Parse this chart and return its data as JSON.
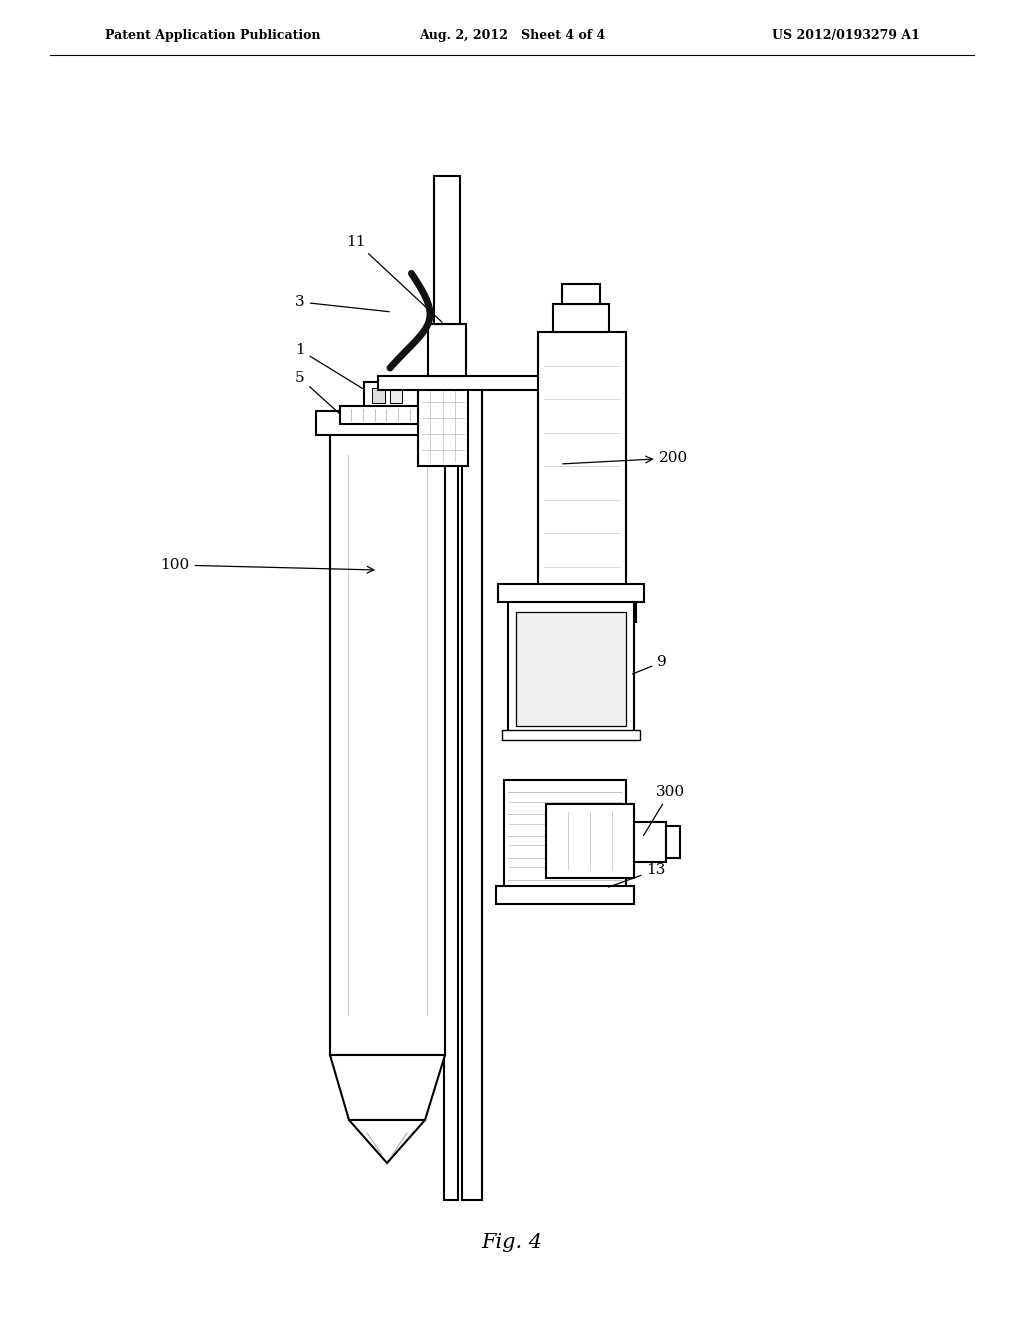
{
  "bg_color": "#ffffff",
  "line_color": "#000000",
  "title_left": "Patent Application Publication",
  "title_mid": "Aug. 2, 2012   Sheet 4 of 4",
  "title_right": "US 2012/0193279 A1",
  "fig_label": "Fig. 4"
}
